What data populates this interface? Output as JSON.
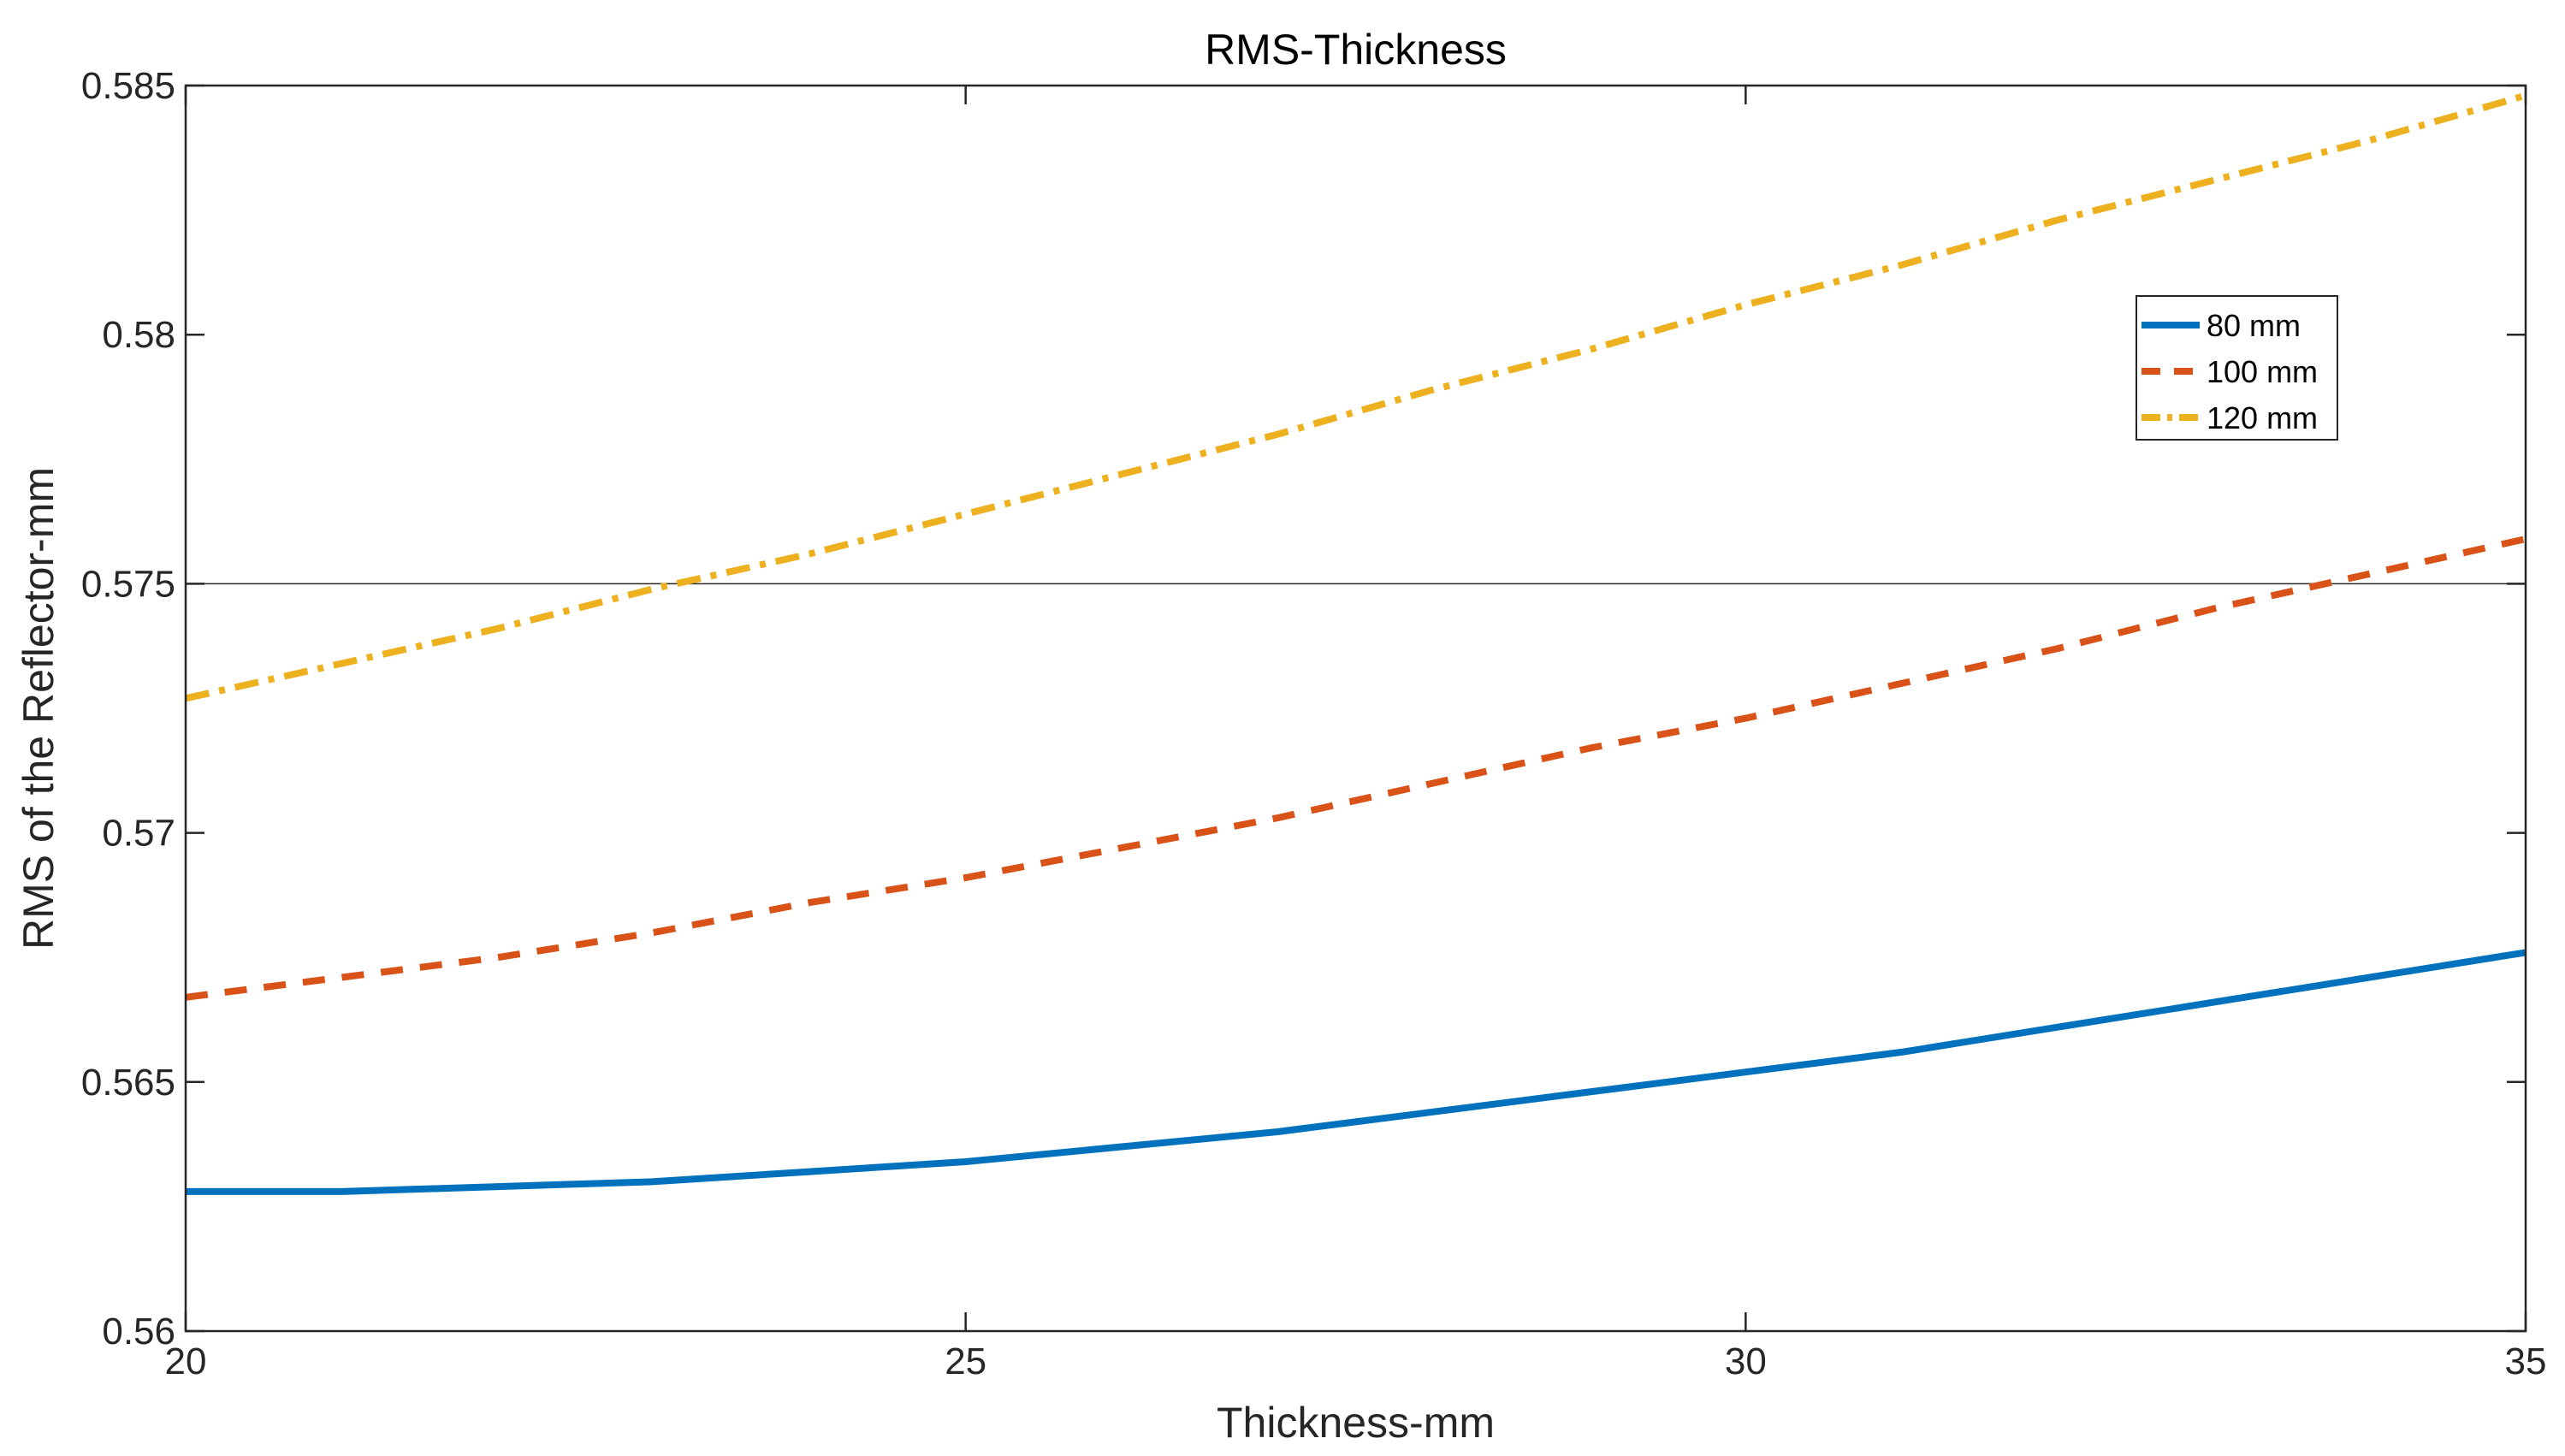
{
  "chart_data": {
    "type": "line",
    "title": "RMS-Thickness",
    "xlabel": "Thickness-mm",
    "ylabel": "RMS of the Reflector-mm",
    "xlim": [
      20,
      35
    ],
    "ylim": [
      0.56,
      0.585
    ],
    "xticks": [
      20,
      25,
      30,
      35
    ],
    "xtick_labels": [
      "20",
      "25",
      "30",
      "35"
    ],
    "yticks": [
      0.56,
      0.565,
      0.57,
      0.575,
      0.58,
      0.585
    ],
    "ytick_labels": [
      "0.56",
      "0.565",
      "0.57",
      "0.575",
      "0.58",
      "0.585"
    ],
    "reference_line": {
      "y": 0.575
    },
    "legend_position": "upper-right (inside)",
    "x": [
      20,
      21,
      22,
      23,
      24,
      25,
      26,
      27,
      28,
      29,
      30,
      31,
      32,
      33,
      34,
      35
    ],
    "series": [
      {
        "name": "80 mm",
        "color": "#0072BD",
        "style": "solid",
        "values": [
          0.5628,
          0.5628,
          0.5629,
          0.563,
          0.5632,
          0.5634,
          0.5637,
          0.564,
          0.5644,
          0.5648,
          0.5652,
          0.5656,
          0.5661,
          0.5666,
          0.5671,
          0.5676
        ]
      },
      {
        "name": "100 mm",
        "color": "#D95319",
        "style": "dashed",
        "values": [
          0.5667,
          0.5671,
          0.5675,
          0.568,
          0.5686,
          0.5691,
          0.5697,
          0.5703,
          0.571,
          0.5717,
          0.5723,
          0.573,
          0.5737,
          0.5745,
          0.5752,
          0.5759
        ]
      },
      {
        "name": "120 mm",
        "color": "#EDB120",
        "style": "dashdot",
        "values": [
          0.5727,
          0.5734,
          0.5741,
          0.5749,
          0.5756,
          0.5764,
          0.5772,
          0.578,
          0.5789,
          0.5797,
          0.5806,
          0.5814,
          0.5823,
          0.5831,
          0.5839,
          0.5848
        ]
      }
    ]
  }
}
